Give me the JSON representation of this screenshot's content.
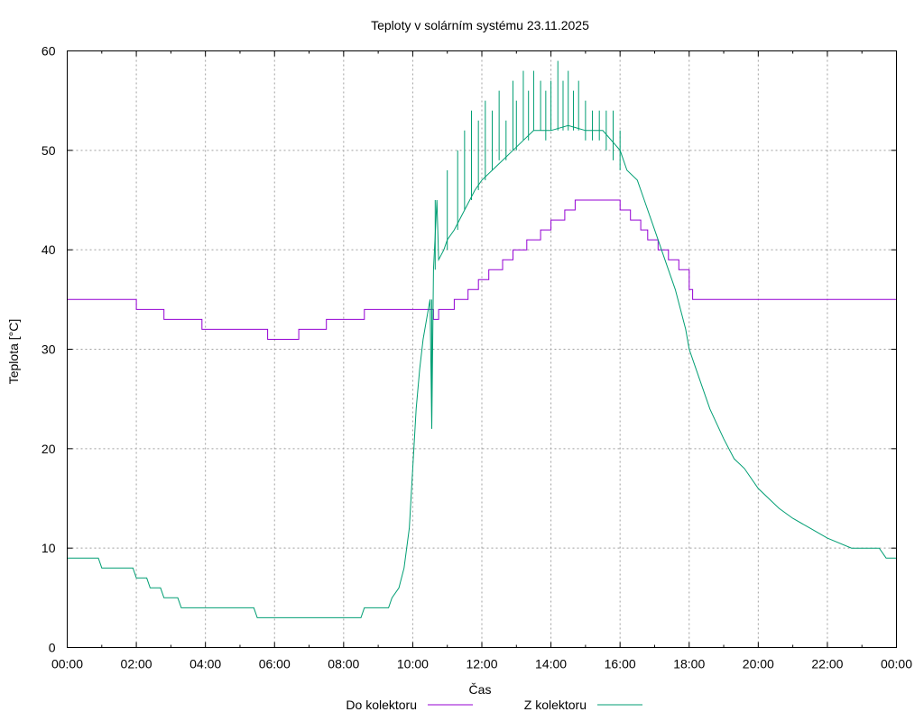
{
  "chart_data": {
    "type": "line",
    "title": "Teploty v solárním systému 23.11.2025",
    "xlabel": "Čas",
    "ylabel": "Teplota [°C]",
    "xlim": [
      0,
      24
    ],
    "ylim": [
      0,
      60
    ],
    "grid": true,
    "legend_position": "bottom-center",
    "x_ticks": [
      {
        "value": 0,
        "label": "00:00"
      },
      {
        "value": 2,
        "label": "02:00"
      },
      {
        "value": 4,
        "label": "04:00"
      },
      {
        "value": 6,
        "label": "06:00"
      },
      {
        "value": 8,
        "label": "08:00"
      },
      {
        "value": 10,
        "label": "10:00"
      },
      {
        "value": 12,
        "label": "12:00"
      },
      {
        "value": 14,
        "label": "14:00"
      },
      {
        "value": 16,
        "label": "16:00"
      },
      {
        "value": 18,
        "label": "18:00"
      },
      {
        "value": 20,
        "label": "20:00"
      },
      {
        "value": 22,
        "label": "22:00"
      },
      {
        "value": 24,
        "label": "00:00"
      }
    ],
    "y_ticks": [
      {
        "value": 0,
        "label": "0"
      },
      {
        "value": 10,
        "label": "10"
      },
      {
        "value": 20,
        "label": "20"
      },
      {
        "value": 30,
        "label": "30"
      },
      {
        "value": 40,
        "label": "40"
      },
      {
        "value": 50,
        "label": "50"
      },
      {
        "value": 60,
        "label": "60"
      }
    ],
    "series": [
      {
        "name": "Do kolektoru",
        "color": "#9400d3",
        "step": true,
        "points": [
          [
            0,
            35
          ],
          [
            2.0,
            34
          ],
          [
            2.8,
            33
          ],
          [
            3.9,
            32
          ],
          [
            5.8,
            31
          ],
          [
            6.7,
            32
          ],
          [
            7.5,
            33
          ],
          [
            8.6,
            34
          ],
          [
            10.6,
            33
          ],
          [
            10.75,
            34
          ],
          [
            11.2,
            35
          ],
          [
            11.6,
            36
          ],
          [
            11.9,
            37
          ],
          [
            12.2,
            38
          ],
          [
            12.6,
            39
          ],
          [
            12.9,
            40
          ],
          [
            13.3,
            41
          ],
          [
            13.7,
            42
          ],
          [
            14.0,
            43
          ],
          [
            14.4,
            44
          ],
          [
            14.7,
            45
          ],
          [
            15.6,
            45
          ],
          [
            16.0,
            44
          ],
          [
            16.3,
            43
          ],
          [
            16.6,
            42
          ],
          [
            16.8,
            41
          ],
          [
            17.1,
            40
          ],
          [
            17.4,
            39
          ],
          [
            17.7,
            38
          ],
          [
            18.0,
            36
          ],
          [
            18.1,
            35
          ],
          [
            24.0,
            35
          ]
        ]
      },
      {
        "name": "Z kolektoru",
        "color": "#009e73",
        "step": false,
        "points": [
          [
            0,
            9
          ],
          [
            0.9,
            9
          ],
          [
            1.0,
            8
          ],
          [
            1.9,
            8
          ],
          [
            2.0,
            7
          ],
          [
            2.3,
            7
          ],
          [
            2.4,
            6
          ],
          [
            2.7,
            6
          ],
          [
            2.8,
            5
          ],
          [
            3.2,
            5
          ],
          [
            3.3,
            4
          ],
          [
            5.4,
            4
          ],
          [
            5.5,
            3
          ],
          [
            8.5,
            3
          ],
          [
            8.6,
            4
          ],
          [
            9.3,
            4
          ],
          [
            9.4,
            5
          ],
          [
            9.6,
            6
          ],
          [
            9.75,
            8
          ],
          [
            9.9,
            12
          ],
          [
            10.0,
            18
          ],
          [
            10.1,
            24
          ],
          [
            10.2,
            28
          ],
          [
            10.3,
            31
          ],
          [
            10.4,
            33
          ],
          [
            10.5,
            35
          ],
          [
            10.55,
            22
          ],
          [
            10.6,
            38
          ],
          [
            10.7,
            45
          ],
          [
            10.75,
            39
          ],
          [
            10.9,
            40
          ],
          [
            11.0,
            41
          ],
          [
            11.2,
            42
          ],
          [
            11.5,
            44
          ],
          [
            11.8,
            46
          ],
          [
            12.0,
            47
          ],
          [
            12.3,
            48
          ],
          [
            12.6,
            49
          ],
          [
            12.9,
            50
          ],
          [
            13.2,
            51
          ],
          [
            13.5,
            52
          ],
          [
            14.0,
            52
          ],
          [
            14.5,
            52.5
          ],
          [
            15.0,
            52
          ],
          [
            15.5,
            52
          ],
          [
            16.0,
            50
          ],
          [
            16.2,
            48
          ],
          [
            16.5,
            47
          ],
          [
            16.7,
            45
          ],
          [
            17.0,
            42
          ],
          [
            17.3,
            39
          ],
          [
            17.6,
            36
          ],
          [
            17.9,
            32
          ],
          [
            18.0,
            30
          ],
          [
            18.3,
            27
          ],
          [
            18.6,
            24
          ],
          [
            19.0,
            21
          ],
          [
            19.3,
            19
          ],
          [
            19.6,
            18
          ],
          [
            20.0,
            16
          ],
          [
            20.3,
            15
          ],
          [
            20.6,
            14
          ],
          [
            21.0,
            13
          ],
          [
            21.5,
            12
          ],
          [
            22.0,
            11
          ],
          [
            22.7,
            10
          ],
          [
            23.5,
            10
          ],
          [
            23.7,
            9
          ],
          [
            24.0,
            9
          ]
        ],
        "noise": [
          [
            10.55,
            22,
            35
          ],
          [
            10.65,
            45,
            38
          ],
          [
            11.0,
            40,
            48
          ],
          [
            11.3,
            42,
            50
          ],
          [
            11.5,
            44,
            52
          ],
          [
            11.7,
            45,
            54
          ],
          [
            11.9,
            46,
            53
          ],
          [
            12.1,
            47,
            55
          ],
          [
            12.3,
            48,
            54
          ],
          [
            12.5,
            49,
            56
          ],
          [
            12.7,
            49,
            53
          ],
          [
            12.9,
            50,
            57
          ],
          [
            13.0,
            50,
            55
          ],
          [
            13.2,
            51,
            58
          ],
          [
            13.35,
            51,
            56
          ],
          [
            13.5,
            52,
            58
          ],
          [
            13.7,
            52,
            57
          ],
          [
            13.85,
            51,
            56
          ],
          [
            14.0,
            52,
            57
          ],
          [
            14.2,
            52,
            59
          ],
          [
            14.35,
            52,
            57
          ],
          [
            14.5,
            52,
            58
          ],
          [
            14.65,
            52,
            56
          ],
          [
            14.8,
            52,
            57
          ],
          [
            15.0,
            51,
            55
          ],
          [
            15.2,
            51,
            54
          ],
          [
            15.4,
            51,
            54
          ],
          [
            15.6,
            50,
            54
          ],
          [
            15.8,
            49,
            54
          ],
          [
            16.0,
            48,
            52
          ]
        ]
      }
    ]
  }
}
